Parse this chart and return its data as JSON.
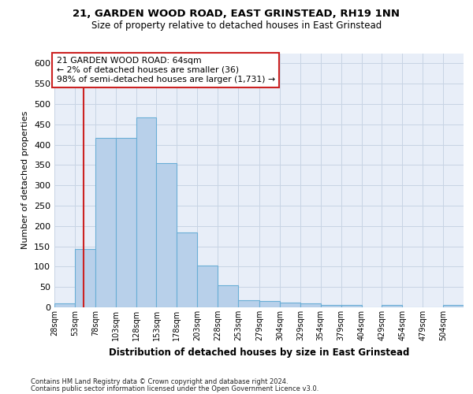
{
  "title1": "21, GARDEN WOOD ROAD, EAST GRINSTEAD, RH19 1NN",
  "title2": "Size of property relative to detached houses in East Grinstead",
  "xlabel": "Distribution of detached houses by size in East Grinstead",
  "ylabel": "Number of detached properties",
  "bar_color": "#b8d0ea",
  "bar_edge_color": "#6aaed6",
  "grid_color": "#c8d4e4",
  "background_color": "#e8eef8",
  "vline_color": "#cc2222",
  "ann_box_color": "#cc2222",
  "annotation_line1": "21 GARDEN WOOD ROAD: 64sqm",
  "annotation_line2": "← 2% of detached houses are smaller (36)",
  "annotation_line3": "98% of semi-detached houses are larger (1,731) →",
  "property_sqm": 64,
  "bin_edges": [
    28,
    53,
    78,
    103,
    128,
    153,
    178,
    203,
    228,
    253,
    279,
    304,
    329,
    354,
    379,
    404,
    429,
    454,
    479,
    504,
    529
  ],
  "bar_heights": [
    10,
    143,
    416,
    416,
    467,
    355,
    185,
    103,
    55,
    18,
    15,
    12,
    10,
    6,
    5,
    0,
    5,
    0,
    0,
    5
  ],
  "ylim": [
    0,
    625
  ],
  "yticks": [
    0,
    50,
    100,
    150,
    200,
    250,
    300,
    350,
    400,
    450,
    500,
    550,
    600
  ],
  "footer_line1": "Contains HM Land Registry data © Crown copyright and database right 2024.",
  "footer_line2": "Contains public sector information licensed under the Open Government Licence v3.0."
}
